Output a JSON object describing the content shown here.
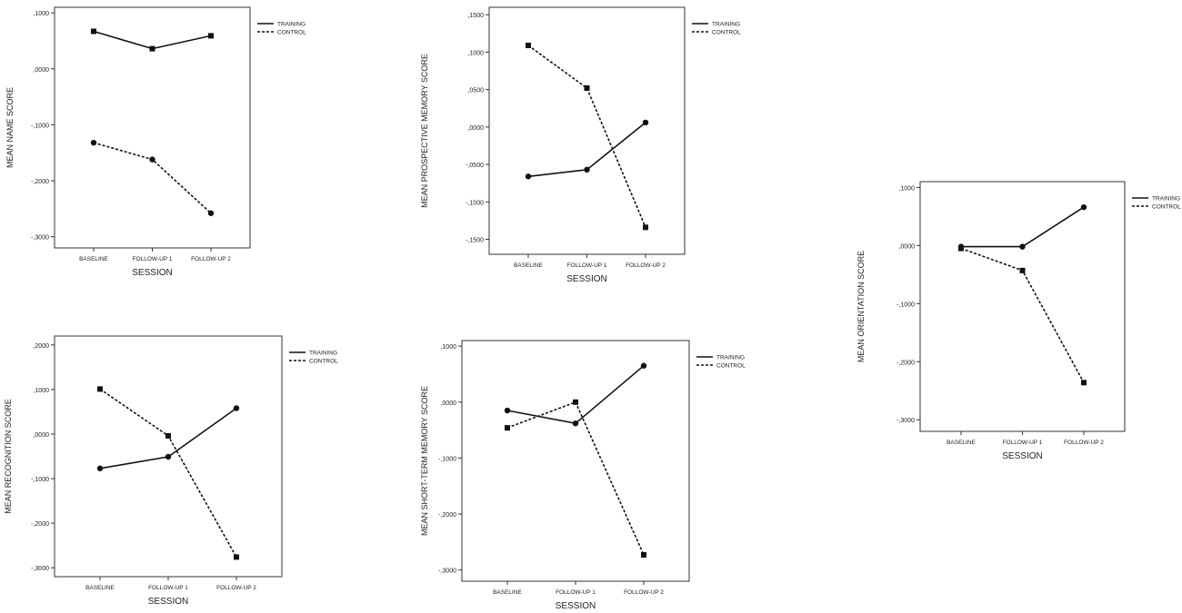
{
  "chart_data": [
    {
      "type": "line",
      "ylabel": "MEAN NAME SCORE",
      "xlabel": "SESSION",
      "categories": [
        "BASELINE",
        "FOLLOW-UP 1",
        "FOLLOW-UP 2"
      ],
      "ylim": [
        -0.32,
        0.11
      ],
      "yticks": [
        0.1,
        0.0,
        -0.1,
        -0.2,
        -0.3
      ],
      "ytick_labels": [
        ",1000",
        ",0000",
        "-,1000",
        "-,2000",
        "-,3000"
      ],
      "legend": {
        "position": "top-right",
        "entries": [
          "TRAINING",
          "CONTROL"
        ]
      },
      "series": [
        {
          "name": "TRAINING",
          "values": [
            0.067,
            0.036,
            0.059
          ],
          "line": "solid",
          "marker": "square"
        },
        {
          "name": "CONTROL",
          "values": [
            -0.132,
            -0.162,
            -0.258
          ],
          "line": "dashed",
          "marker": "circle"
        }
      ]
    },
    {
      "type": "line",
      "ylabel": "MEAN PROSPECTIVE MEMORY SCORE",
      "xlabel": "SESSION",
      "categories": [
        "BASELINE",
        "FOLLOW-UP 1",
        "FOLLOW-UP 2"
      ],
      "ylim": [
        -0.17,
        0.16
      ],
      "yticks": [
        0.15,
        0.1,
        0.05,
        0.0,
        -0.05,
        -0.1,
        -0.15
      ],
      "ytick_labels": [
        ",1500",
        ",1000",
        ",0500",
        ",0000",
        "-,0500",
        "-,1000",
        "-,1500"
      ],
      "legend": {
        "position": "top-right",
        "entries": [
          "TRAINING",
          "CONTROL"
        ]
      },
      "series": [
        {
          "name": "TRAINING",
          "values": [
            -0.066,
            -0.057,
            0.006
          ],
          "line": "solid",
          "marker": "circle"
        },
        {
          "name": "CONTROL",
          "values": [
            0.109,
            0.052,
            -0.134
          ],
          "line": "dashed",
          "marker": "square"
        }
      ]
    },
    {
      "type": "line",
      "ylabel": "MEAN ORIENTATION SCORE",
      "xlabel": "SESSION",
      "categories": [
        "BASELINE",
        "FOLLOW-UP 1",
        "FOLLOW-UP 2"
      ],
      "ylim": [
        -0.32,
        0.11
      ],
      "yticks": [
        0.1,
        0.0,
        -0.1,
        -0.2,
        -0.3
      ],
      "ytick_labels": [
        ",1000",
        ",0000",
        "-,1000",
        "-,2000",
        "-,3000"
      ],
      "legend": {
        "position": "top-right",
        "entries": [
          "TRAINING",
          "CONTROL"
        ]
      },
      "series": [
        {
          "name": "TRAINING",
          "values": [
            -0.002,
            -0.002,
            0.066
          ],
          "line": "solid",
          "marker": "circle"
        },
        {
          "name": "CONTROL",
          "values": [
            -0.005,
            -0.043,
            -0.236
          ],
          "line": "dashed",
          "marker": "square"
        }
      ]
    },
    {
      "type": "line",
      "ylabel": "MEAN RECOGNITION SCORE",
      "xlabel": "SESSION",
      "categories": [
        "BASELINE",
        "FOLLOW-UP 1",
        "FOLLOW-UP 2"
      ],
      "ylim": [
        -0.32,
        0.22
      ],
      "yticks": [
        0.2,
        0.1,
        0.0,
        -0.1,
        -0.2,
        -0.3
      ],
      "ytick_labels": [
        ",2000",
        ",1000",
        ",0000",
        "-,1000",
        "-,2000",
        "-,3000"
      ],
      "legend": {
        "position": "top-right",
        "entries": [
          "TRAINING",
          "CONTROL"
        ]
      },
      "series": [
        {
          "name": "TRAINING",
          "values": [
            -0.077,
            -0.051,
            0.058
          ],
          "line": "solid",
          "marker": "circle"
        },
        {
          "name": "CONTROL",
          "values": [
            0.101,
            -0.004,
            -0.276
          ],
          "line": "dashed",
          "marker": "square"
        }
      ]
    },
    {
      "type": "line",
      "ylabel": "MEAN SHORT-TERM MEMORY SCORE",
      "xlabel": "SESSION",
      "categories": [
        "BASELINE",
        "FOLLOW-UP 1",
        "FOLLOW-UP 2"
      ],
      "ylim": [
        -0.32,
        0.11
      ],
      "yticks": [
        0.1,
        0.0,
        -0.1,
        -0.2,
        -0.3
      ],
      "ytick_labels": [
        ",1000",
        ",0000",
        "-,1000",
        "-,2000",
        "-,3000"
      ],
      "legend": {
        "position": "top-right",
        "entries": [
          "TRAINING",
          "CONTROL"
        ]
      },
      "series": [
        {
          "name": "TRAINING",
          "values": [
            -0.015,
            -0.038,
            0.065
          ],
          "line": "solid",
          "marker": "circle"
        },
        {
          "name": "CONTROL",
          "values": [
            -0.046,
            0.0,
            -0.273
          ],
          "line": "dashed",
          "marker": "square"
        }
      ]
    }
  ]
}
